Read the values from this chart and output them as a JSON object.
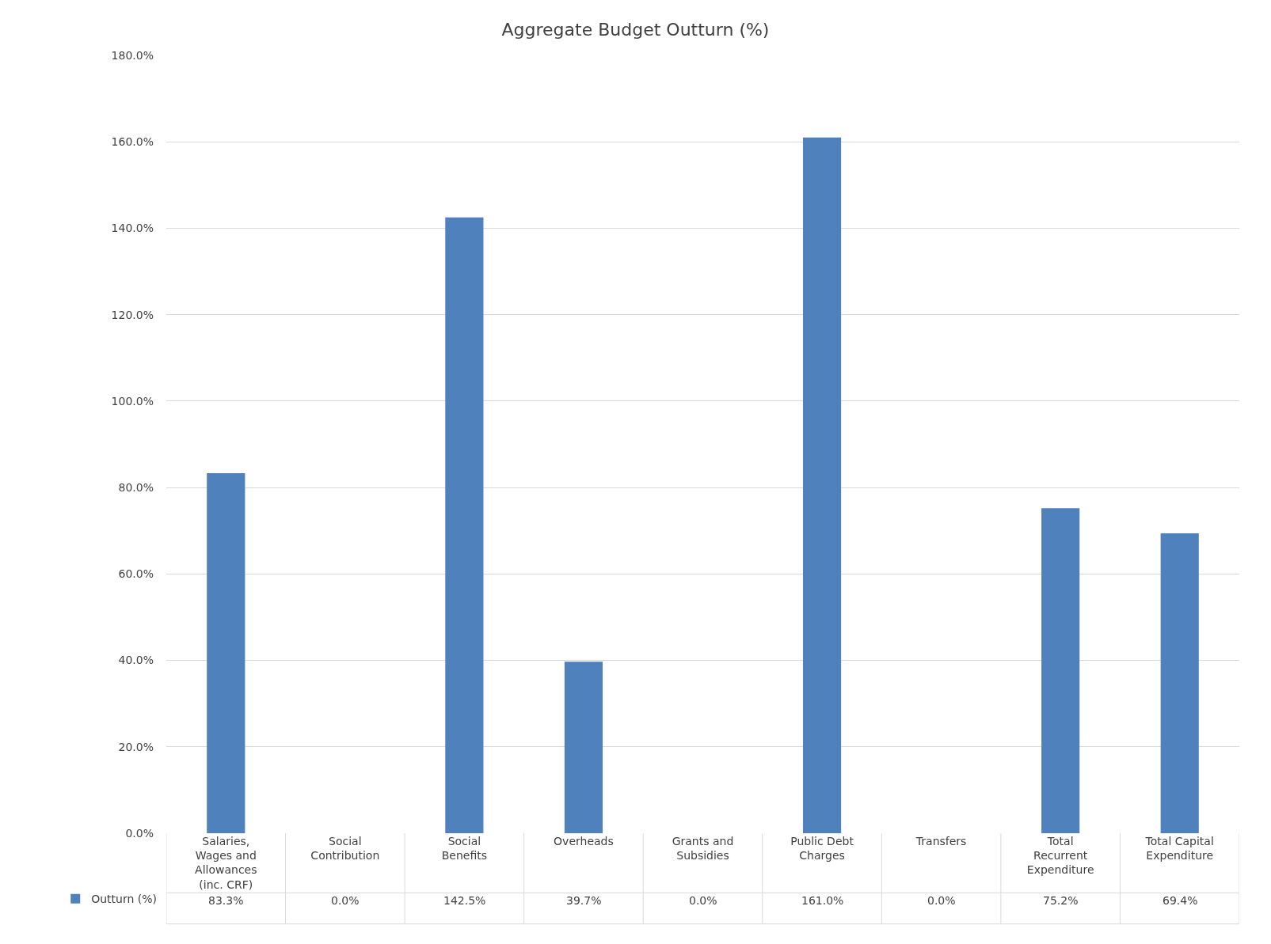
{
  "chart_data": {
    "type": "bar",
    "title": "Aggregate Budget Outturn (%)",
    "categories": [
      "Salaries, Wages and Allowances (inc. CRF)",
      "Social Contribution",
      "Social Benefits",
      "Overheads",
      "Grants and Subsidies",
      "Public Debt Charges",
      "Transfers",
      "Total Recurrent Expenditure",
      "Total Capital Expenditure"
    ],
    "series": [
      {
        "name": "Outturn (%)",
        "color": "#4f81bd",
        "values": [
          83.3,
          0.0,
          142.5,
          39.7,
          0.0,
          161.0,
          0.0,
          75.2,
          69.4
        ],
        "value_labels": [
          "83.3%",
          "0.0%",
          "142.5%",
          "39.7%",
          "0.0%",
          "161.0%",
          "0.0%",
          "75.2%",
          "69.4%"
        ]
      }
    ],
    "ylim": [
      0,
      180
    ],
    "yticks": [
      {
        "value": 0,
        "label": "0.0%"
      },
      {
        "value": 20,
        "label": "20.0%"
      },
      {
        "value": 40,
        "label": "40.0%"
      },
      {
        "value": 60,
        "label": "60.0%"
      },
      {
        "value": 80,
        "label": "80.0%"
      },
      {
        "value": 100,
        "label": "100.0%"
      },
      {
        "value": 120,
        "label": "120.0%"
      },
      {
        "value": 140,
        "label": "140.0%"
      },
      {
        "value": 160,
        "label": "160.0%"
      },
      {
        "value": 180,
        "label": "180.0%"
      }
    ],
    "grid": "y",
    "legend": "bottom left"
  }
}
